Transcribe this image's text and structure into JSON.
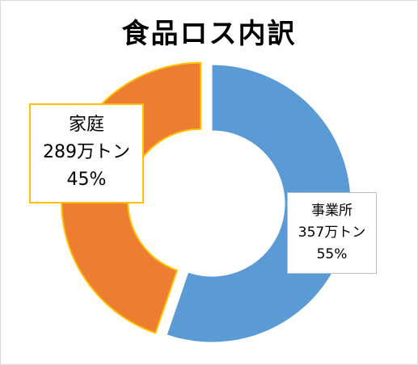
{
  "colors": {
    "business": "#5b9bd5",
    "home": "#ed7d31",
    "home_outline": "#ffc000"
  },
  "chart_data": {
    "type": "pie",
    "variant": "donut",
    "title": "食品ロス内訳",
    "slices": [
      {
        "name": "事業所",
        "value": 357,
        "value_label": "357万トン",
        "percent": 55,
        "percent_label": "55%",
        "color": "#5b9bd5"
      },
      {
        "name": "家庭",
        "value": 289,
        "value_label": "289万トン",
        "percent": 45,
        "percent_label": "45%",
        "color": "#ed7d31",
        "exploded": true
      }
    ],
    "legend": "none"
  }
}
